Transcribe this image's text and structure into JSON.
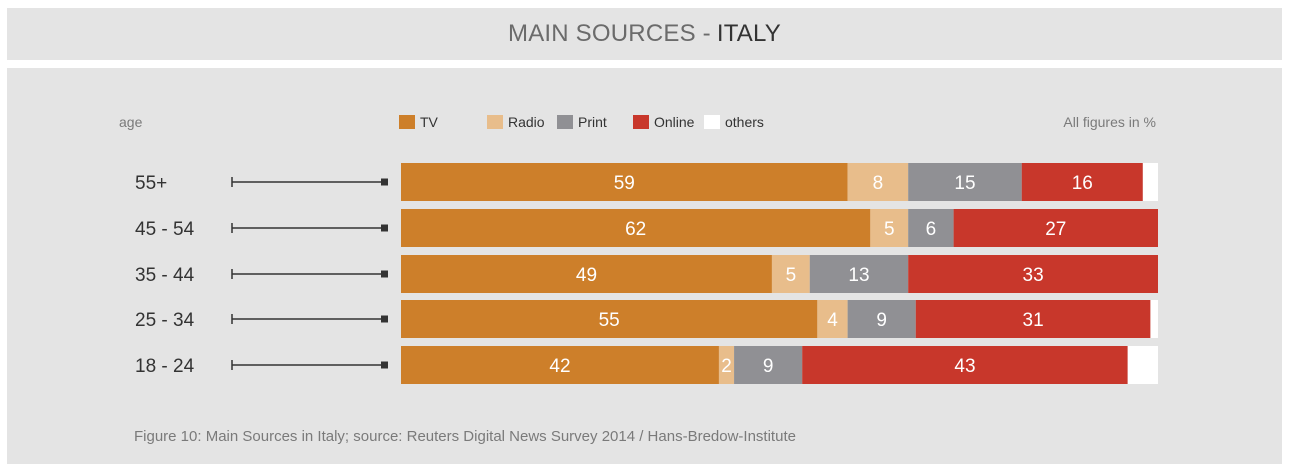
{
  "title": {
    "prefix": "MAIN SOURCES -",
    "country": "ITALY"
  },
  "caption": "Figure 10: Main Sources in Italy; source: Reuters Digital News Survey 2014 / Hans-Bredow-Institute",
  "chart_data": {
    "type": "bar",
    "orientation": "horizontal",
    "stacked": true,
    "y_label": "age",
    "unit_note": "All figures in %",
    "categories": [
      "55+",
      "45 - 54",
      "35 - 44",
      "25 - 34",
      "18 - 24"
    ],
    "series": [
      {
        "name": "TV",
        "color": "#cd7f2a",
        "values": [
          59,
          62,
          49,
          55,
          42
        ]
      },
      {
        "name": "Radio",
        "color": "#e8bd8b",
        "values": [
          8,
          5,
          5,
          4,
          2
        ]
      },
      {
        "name": "Print",
        "color": "#909094",
        "values": [
          15,
          6,
          13,
          9,
          9
        ]
      },
      {
        "name": "Online",
        "color": "#c8372b",
        "values": [
          16,
          27,
          33,
          31,
          43
        ]
      },
      {
        "name": "others",
        "color": "#ffffff",
        "values": [
          2,
          0,
          0,
          1,
          4
        ]
      }
    ],
    "data_labels_shown_for": [
      "TV",
      "Radio",
      "Print",
      "Online"
    ],
    "xlim": [
      0,
      100
    ],
    "legend_position": "top"
  }
}
